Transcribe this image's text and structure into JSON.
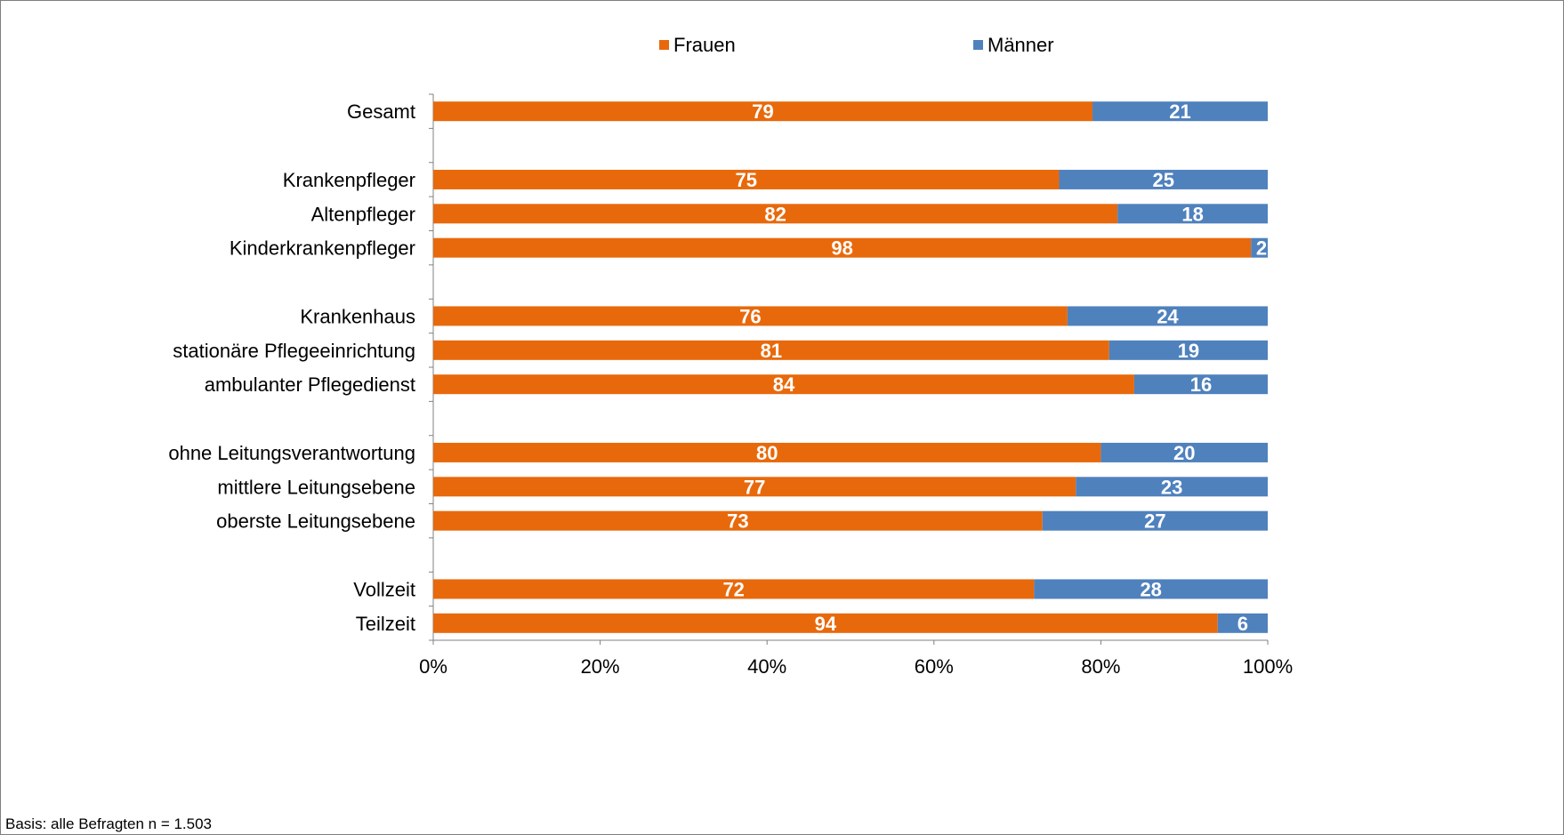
{
  "chart_data": {
    "type": "bar",
    "orientation": "horizontal",
    "stacked": true,
    "categories": [
      "Gesamt",
      "",
      "Krankenpfleger",
      "Altenpfleger",
      "Kinderkrankenpfleger",
      "",
      "Krankenhaus",
      "stationäre Pflegeeinrichtung",
      "ambulanter Pflegedienst",
      "",
      "ohne Leitungsverantwortung",
      "mittlere Leitungsebene",
      "oberste Leitungsebene",
      "",
      "Vollzeit",
      "Teilzeit"
    ],
    "series": [
      {
        "name": "Frauen",
        "color": "#e8690b",
        "values": [
          79,
          null,
          75,
          82,
          98,
          null,
          76,
          81,
          84,
          null,
          80,
          77,
          73,
          null,
          72,
          94
        ]
      },
      {
        "name": "Männer",
        "color": "#4f81bd",
        "values": [
          21,
          null,
          25,
          18,
          2,
          null,
          24,
          19,
          16,
          null,
          20,
          23,
          27,
          null,
          28,
          6
        ]
      }
    ],
    "xlim": [
      0,
      100
    ],
    "xticks": [
      "0%",
      "20%",
      "40%",
      "60%",
      "80%",
      "100%"
    ],
    "legend_position": "top",
    "grid": false,
    "title": "",
    "xlabel": "",
    "ylabel": ""
  },
  "footnote": "Basis: alle Befragten n = 1.503"
}
